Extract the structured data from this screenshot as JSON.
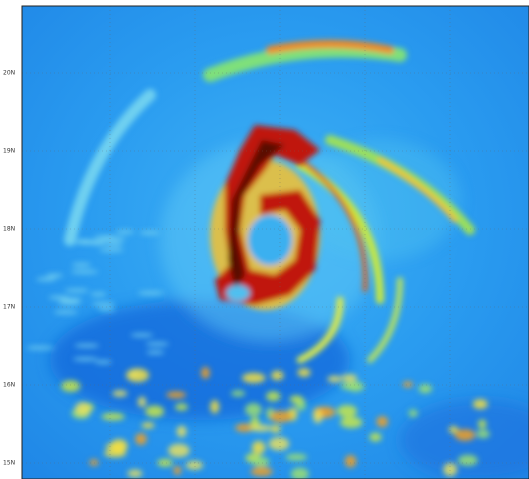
{
  "map": {
    "y_labels": [
      "20N",
      "19N",
      "18N",
      "17N",
      "16N",
      "15N"
    ]
  }
}
